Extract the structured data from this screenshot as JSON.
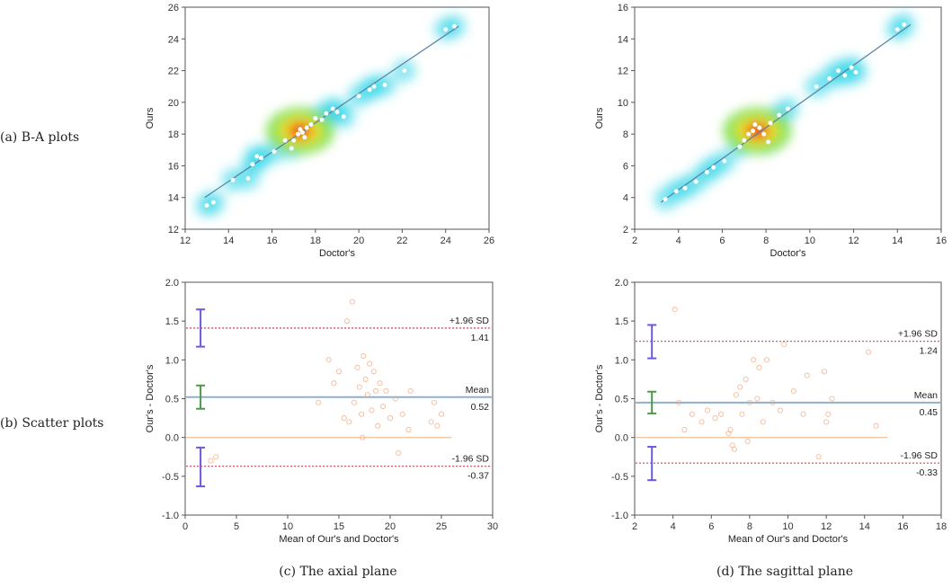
{
  "row_labels": {
    "a": "(a) B-A plots",
    "b": "(b) Scatter plots"
  },
  "captions": {
    "left": "(c) The axial plane",
    "right": "(d) The sagittal plane"
  },
  "colors": {
    "regression": "#5a7ea3",
    "points": "#ffffff",
    "scatter_pts": "#f0a47a",
    "sd_line": "#e05565",
    "mean_line": "#8fb0cf",
    "zero_line": "#f4c9a5",
    "ci_sd": "#6a5ae0",
    "ci_mean": "#4a9a4a"
  },
  "chart_data": [
    {
      "id": "axial-correlation",
      "type": "scatter",
      "xlabel": "Doctor's",
      "ylabel": "Ours",
      "xlim": [
        12,
        26
      ],
      "ylim": [
        12,
        26
      ],
      "xticks": [
        12,
        14,
        16,
        18,
        20,
        22,
        24,
        26
      ],
      "yticks": [
        12,
        14,
        16,
        18,
        20,
        22,
        24,
        26
      ],
      "regression": {
        "x": [
          12.9,
          24.6
        ],
        "y": [
          14.0,
          24.8
        ]
      },
      "density_hotspot": {
        "x": 17.3,
        "y": 18.2
      },
      "points": [
        [
          13.0,
          13.5
        ],
        [
          13.3,
          13.7
        ],
        [
          14.2,
          15.1
        ],
        [
          14.9,
          15.2
        ],
        [
          15.1,
          16.1
        ],
        [
          15.3,
          16.6
        ],
        [
          15.5,
          16.5
        ],
        [
          16.1,
          16.9
        ],
        [
          16.6,
          17.6
        ],
        [
          16.9,
          17.1
        ],
        [
          17.0,
          17.6
        ],
        [
          17.2,
          18.0
        ],
        [
          17.3,
          18.3
        ],
        [
          17.4,
          18.1
        ],
        [
          17.5,
          17.8
        ],
        [
          17.6,
          18.4
        ],
        [
          17.8,
          18.6
        ],
        [
          18.0,
          19.0
        ],
        [
          18.3,
          18.9
        ],
        [
          18.5,
          19.3
        ],
        [
          18.8,
          19.6
        ],
        [
          19.0,
          19.4
        ],
        [
          19.3,
          19.1
        ],
        [
          20.0,
          20.4
        ],
        [
          20.5,
          20.8
        ],
        [
          20.7,
          21.0
        ],
        [
          21.2,
          21.1
        ],
        [
          22.1,
          22.0
        ],
        [
          24.0,
          24.6
        ],
        [
          24.4,
          24.8
        ]
      ]
    },
    {
      "id": "sagittal-correlation",
      "type": "scatter",
      "xlabel": "Doctor's",
      "ylabel": "Ours",
      "xlim": [
        2,
        16
      ],
      "ylim": [
        2,
        16
      ],
      "xticks": [
        2,
        4,
        6,
        8,
        10,
        12,
        14,
        16
      ],
      "yticks": [
        2,
        4,
        6,
        8,
        10,
        12,
        14,
        16
      ],
      "regression": {
        "x": [
          3.2,
          14.6
        ],
        "y": [
          3.7,
          14.9
        ]
      },
      "density_hotspot": {
        "x": 7.6,
        "y": 8.2
      },
      "points": [
        [
          3.4,
          3.9
        ],
        [
          3.9,
          4.4
        ],
        [
          4.3,
          4.6
        ],
        [
          4.8,
          5.0
        ],
        [
          5.3,
          5.6
        ],
        [
          5.6,
          5.9
        ],
        [
          6.1,
          6.3
        ],
        [
          6.8,
          7.2
        ],
        [
          7.0,
          7.6
        ],
        [
          7.2,
          8.0
        ],
        [
          7.4,
          8.2
        ],
        [
          7.5,
          8.6
        ],
        [
          7.7,
          8.4
        ],
        [
          7.9,
          8.0
        ],
        [
          8.1,
          7.5
        ],
        [
          8.2,
          8.7
        ],
        [
          8.6,
          9.2
        ],
        [
          9.0,
          9.6
        ],
        [
          10.3,
          11.0
        ],
        [
          10.9,
          11.5
        ],
        [
          11.3,
          12.0
        ],
        [
          11.6,
          11.7
        ],
        [
          11.9,
          12.2
        ],
        [
          12.1,
          11.9
        ],
        [
          14.0,
          14.6
        ],
        [
          14.3,
          14.9
        ]
      ]
    },
    {
      "id": "axial-bland-altman",
      "type": "scatter",
      "xlabel": "Mean of Our's and Doctor's",
      "ylabel": "Our's - Doctor's",
      "xlim": [
        0,
        30
      ],
      "ylim": [
        -1.0,
        2.0
      ],
      "xticks": [
        0,
        5,
        10,
        15,
        20,
        25,
        30
      ],
      "yticks": [
        -1.0,
        -0.5,
        0.0,
        0.5,
        1.0,
        1.5,
        2.0
      ],
      "ytick_labels": [
        "-1.0",
        "-0.5",
        "0.0",
        "0.5",
        "1.0",
        "1.5",
        "2.0"
      ],
      "mean": 0.52,
      "upper_loa": 1.41,
      "lower_loa": -0.37,
      "mean_label": "Mean",
      "mean_value_label": "0.52",
      "upper_label": "+1.96 SD",
      "upper_value_label": "1.41",
      "lower_label": "-1.96 SD",
      "lower_value_label": "-0.37",
      "ci_x": 1.5,
      "ci_upper": [
        1.17,
        1.65
      ],
      "ci_mean": [
        0.37,
        0.67
      ],
      "ci_lower": [
        -0.63,
        -0.13
      ],
      "zero_line_xmax": 26,
      "points": [
        [
          2.5,
          -0.3
        ],
        [
          3.0,
          -0.25
        ],
        [
          13.0,
          0.45
        ],
        [
          14.0,
          1.0
        ],
        [
          14.5,
          0.7
        ],
        [
          15.0,
          0.85
        ],
        [
          15.5,
          0.25
        ],
        [
          15.8,
          1.5
        ],
        [
          16.0,
          0.2
        ],
        [
          16.3,
          1.75
        ],
        [
          16.5,
          0.45
        ],
        [
          16.8,
          0.9
        ],
        [
          17.0,
          0.65
        ],
        [
          17.2,
          0.3
        ],
        [
          17.4,
          1.05
        ],
        [
          17.6,
          0.75
        ],
        [
          17.8,
          0.55
        ],
        [
          18.0,
          0.95
        ],
        [
          18.2,
          0.35
        ],
        [
          18.4,
          0.85
        ],
        [
          18.6,
          0.6
        ],
        [
          18.8,
          0.15
        ],
        [
          19.0,
          0.7
        ],
        [
          19.3,
          0.4
        ],
        [
          19.6,
          0.6
        ],
        [
          20.0,
          0.25
        ],
        [
          20.5,
          0.5
        ],
        [
          20.8,
          -0.2
        ],
        [
          21.2,
          0.3
        ],
        [
          21.8,
          0.1
        ],
        [
          22.0,
          0.6
        ],
        [
          24.0,
          0.2
        ],
        [
          24.3,
          0.45
        ],
        [
          24.6,
          0.15
        ],
        [
          25.0,
          0.3
        ],
        [
          17.3,
          0.0
        ]
      ]
    },
    {
      "id": "sagittal-bland-altman",
      "type": "scatter",
      "xlabel": "Mean of Our's and Doctor's",
      "ylabel": "Our's - Doctor's",
      "xlim": [
        2,
        18
      ],
      "ylim": [
        -1.0,
        2.0
      ],
      "xticks": [
        2,
        4,
        6,
        8,
        10,
        12,
        14,
        16,
        18
      ],
      "yticks": [
        -1.0,
        -0.5,
        0.0,
        0.5,
        1.0,
        1.5,
        2.0
      ],
      "ytick_labels": [
        "-1.0",
        "-0.5",
        "0.0",
        "0.5",
        "1.0",
        "1.5",
        "2.0"
      ],
      "mean": 0.45,
      "upper_loa": 1.24,
      "lower_loa": -0.33,
      "mean_label": "Mean",
      "mean_value_label": "0.45",
      "upper_label": "+1.96 SD",
      "upper_value_label": "1.24",
      "lower_label": "-1.96 SD",
      "lower_value_label": "-0.33",
      "ci_x": 2.9,
      "ci_upper": [
        1.02,
        1.45
      ],
      "ci_mean": [
        0.31,
        0.59
      ],
      "ci_lower": [
        -0.55,
        -0.12
      ],
      "zero_line_xmax": 15.2,
      "points": [
        [
          4.1,
          1.65
        ],
        [
          4.3,
          0.45
        ],
        [
          4.6,
          0.1
        ],
        [
          5.0,
          0.3
        ],
        [
          5.5,
          0.2
        ],
        [
          5.8,
          0.35
        ],
        [
          6.2,
          0.25
        ],
        [
          6.5,
          0.3
        ],
        [
          7.0,
          0.1
        ],
        [
          7.1,
          -0.1
        ],
        [
          7.3,
          0.55
        ],
        [
          7.5,
          0.65
        ],
        [
          7.6,
          0.3
        ],
        [
          7.8,
          0.75
        ],
        [
          7.9,
          -0.05
        ],
        [
          8.0,
          0.45
        ],
        [
          8.2,
          1.0
        ],
        [
          8.4,
          0.5
        ],
        [
          8.5,
          0.9
        ],
        [
          8.7,
          0.2
        ],
        [
          8.9,
          1.0
        ],
        [
          9.2,
          0.45
        ],
        [
          9.6,
          0.35
        ],
        [
          9.8,
          1.2
        ],
        [
          10.3,
          0.6
        ],
        [
          10.8,
          0.3
        ],
        [
          11.0,
          0.8
        ],
        [
          11.6,
          -0.25
        ],
        [
          11.9,
          0.85
        ],
        [
          12.0,
          0.2
        ],
        [
          12.1,
          0.3
        ],
        [
          12.3,
          0.5
        ],
        [
          14.2,
          1.1
        ],
        [
          14.6,
          0.15
        ],
        [
          7.2,
          -0.15
        ],
        [
          6.9,
          0.05
        ]
      ]
    }
  ]
}
